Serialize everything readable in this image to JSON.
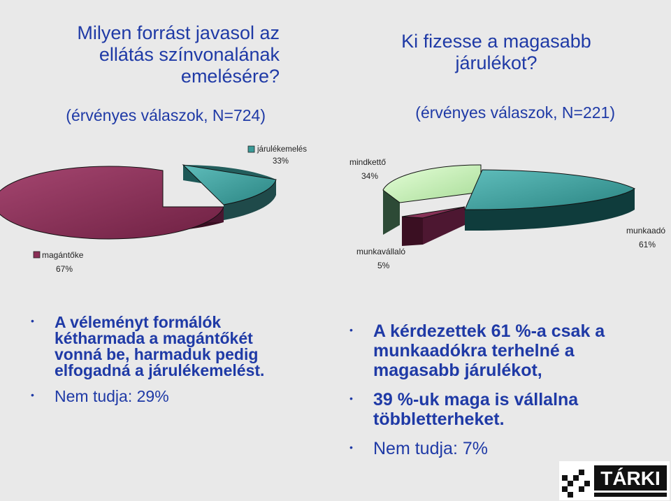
{
  "left": {
    "title": "Milyen forrást javasol az ellátás színvonalának emelésére?",
    "subtitle": "(érvényes válaszok, N=724)"
  },
  "right": {
    "title": "Ki fizesse a magasabb járulékot?",
    "subtitle": "(érvényes válaszok, N=221)"
  },
  "chart_data": [
    {
      "type": "pie",
      "title": "Milyen forrást javasol az ellátás színvonalának emelésére?",
      "subtitle": "(érvényes válaszok, N=724)",
      "categories": [
        "járulékemelés",
        "magántőke"
      ],
      "values": [
        33,
        67
      ],
      "labels": [
        "33%",
        "67%"
      ],
      "colors": [
        "#3a9a98",
        "#8a2e55"
      ]
    },
    {
      "type": "pie",
      "title": "Ki fizesse a magasabb járulékot?",
      "subtitle": "(érvényes válaszok, N=221)",
      "categories": [
        "mindkettő",
        "munkavállaló",
        "munkaadó"
      ],
      "values": [
        34,
        5,
        61
      ],
      "labels": [
        "34%",
        "5%",
        "61%"
      ],
      "colors": [
        "#c8f0b8",
        "#7a2848",
        "#3a9a98"
      ]
    }
  ],
  "bullets_left": [
    "A véleményt formálók kétharmada a magántőkét vonná be, harmaduk pedig elfogadná a járulékemelést.",
    "Nem tudja: 29%"
  ],
  "bullets_right": [
    "A kérdezettek 61 %-a csak a munkaadókra terhelné a magasabb járulékot,",
    "39 %-uk maga is vállalna többletterheket.",
    "Nem tudja: 7%"
  ],
  "logo": {
    "text": "TÁRKI"
  }
}
